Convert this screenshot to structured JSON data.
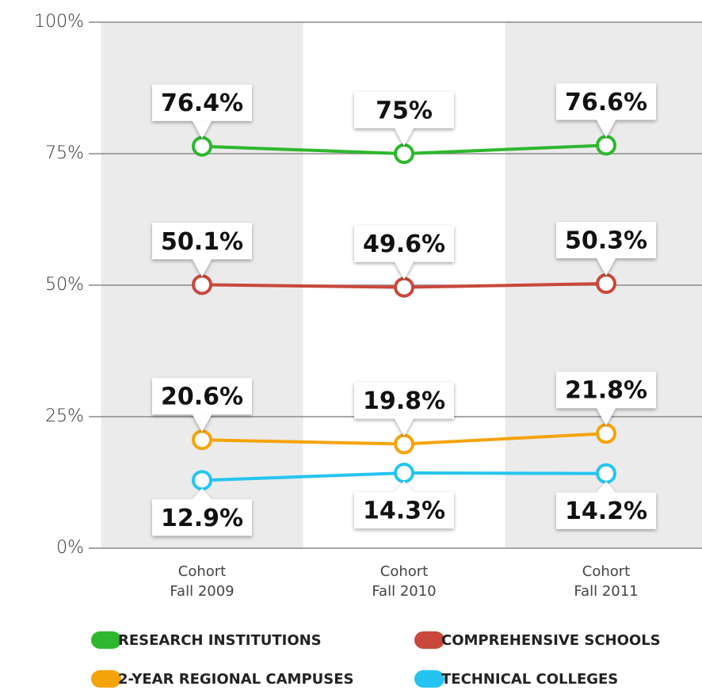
{
  "chart_data": {
    "type": "line",
    "categories": [
      [
        "Cohort",
        "Fall 2009"
      ],
      [
        "Cohort",
        "Fall 2010"
      ],
      [
        "Cohort",
        "Fall 2011"
      ]
    ],
    "series": [
      {
        "name": "RESEARCH INSTITUTIONS",
        "color": "#2db82d",
        "values": [
          76.4,
          75,
          76.6
        ],
        "value_labels": [
          "76.4%",
          "75%",
          "76.6%"
        ]
      },
      {
        "name": "COMPREHENSIVE SCHOOLS",
        "color": "#c9483b",
        "values": [
          50.1,
          49.6,
          50.3
        ],
        "value_labels": [
          "50.1%",
          "49.6%",
          "50.3%"
        ]
      },
      {
        "name": "2-YEAR REGIONAL CAMPUSES",
        "color": "#f5a30a",
        "values": [
          20.6,
          19.8,
          21.8
        ],
        "value_labels": [
          "20.6%",
          "19.8%",
          "21.8%"
        ]
      },
      {
        "name": "TECHNICAL COLLEGES",
        "color": "#25c4f0",
        "values": [
          12.9,
          14.3,
          14.2
        ],
        "value_labels": [
          "12.9%",
          "14.3%",
          "14.2%"
        ]
      }
    ],
    "ylim": [
      0,
      100
    ],
    "yticks": [
      {
        "value": 0,
        "label": "0%"
      },
      {
        "value": 25,
        "label": "25%"
      },
      {
        "value": 50,
        "label": "50%"
      },
      {
        "value": 75,
        "label": "75%"
      },
      {
        "value": 100,
        "label": "100%"
      }
    ],
    "grid": true
  }
}
